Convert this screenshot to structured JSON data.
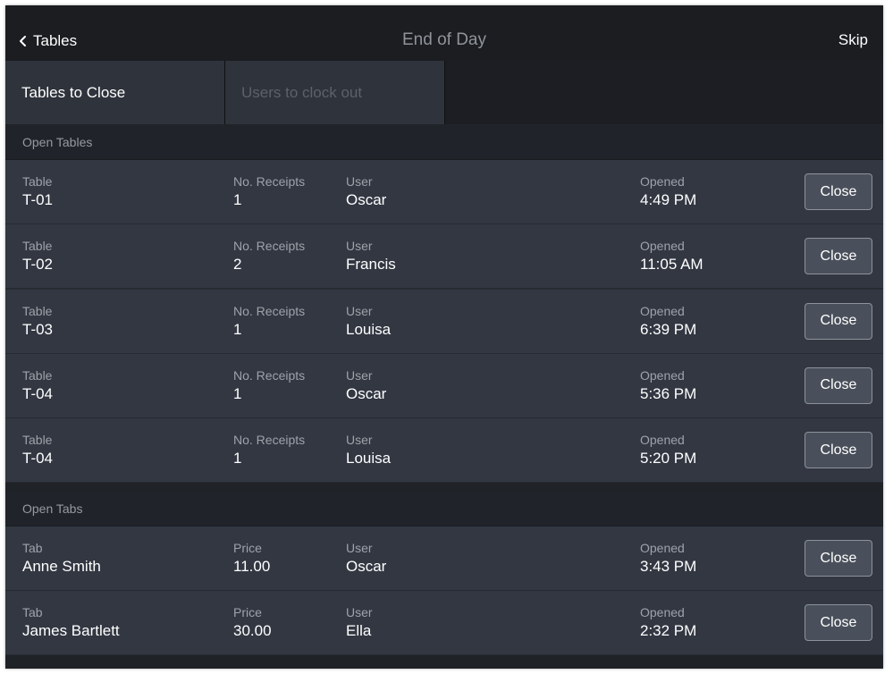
{
  "nav": {
    "back_label": "Tables",
    "title": "End of Day",
    "skip_label": "Skip"
  },
  "segments": {
    "active": "Tables to Close",
    "inactive": "Users to clock out"
  },
  "open_tables": {
    "header": "Open Tables",
    "label_table": "Table",
    "label_receipts": "No. Receipts",
    "label_user": "User",
    "label_opened": "Opened",
    "close_label": "Close",
    "rows": [
      {
        "table": "T-01",
        "receipts": "1",
        "user": "Oscar",
        "opened": "4:49 PM"
      },
      {
        "table": "T-02",
        "receipts": "2",
        "user": "Francis",
        "opened": "11:05 AM"
      },
      {
        "table": "T-03",
        "receipts": "1",
        "user": "Louisa",
        "opened": "6:39 PM"
      },
      {
        "table": "T-04",
        "receipts": "1",
        "user": "Oscar",
        "opened": "5:36 PM"
      },
      {
        "table": "T-04",
        "receipts": "1",
        "user": "Louisa",
        "opened": "5:20 PM"
      }
    ]
  },
  "open_tabs": {
    "header": "Open Tabs",
    "label_tab": "Tab",
    "label_price": "Price",
    "label_user": "User",
    "label_opened": "Opened",
    "close_label": "Close",
    "rows": [
      {
        "tab": "Anne Smith",
        "price": "11.00",
        "user": "Oscar",
        "opened": "3:43 PM"
      },
      {
        "tab": "James Bartlett",
        "price": "30.00",
        "user": "Ella",
        "opened": "2:32 PM"
      }
    ]
  },
  "icons": {
    "back": "chevron-left-icon"
  },
  "colors": {
    "background": "#262a32",
    "row": "#323742",
    "button": "#4a505b",
    "text": "#ffffff",
    "muted": "#9ea2a9"
  }
}
